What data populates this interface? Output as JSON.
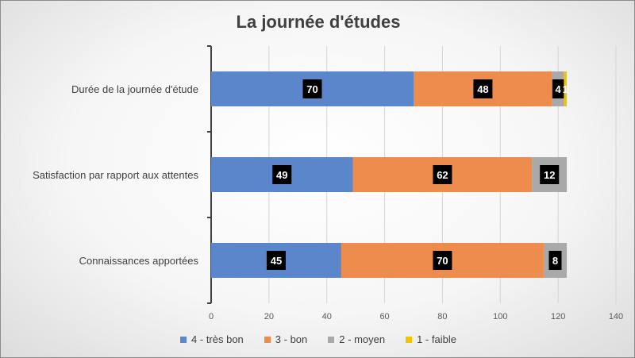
{
  "chart_data": {
    "type": "bar",
    "orientation": "horizontal",
    "stacked": true,
    "title": "La journée d'études",
    "categories": [
      "Durée de la journée d'étude",
      "Satisfaction par rapport aux attentes",
      "Connaissances apportées"
    ],
    "series": [
      {
        "name": "4 - très bon",
        "color": "#5b86cc",
        "values": [
          70,
          49,
          45
        ]
      },
      {
        "name": "3 - bon",
        "color": "#ee8c4d",
        "values": [
          48,
          62,
          70
        ]
      },
      {
        "name": "2 - moyen",
        "color": "#a9a9a9",
        "values": [
          4,
          12,
          8
        ]
      },
      {
        "name": "1 - faible",
        "color": "#f5c400",
        "values": [
          1,
          0,
          0
        ]
      }
    ],
    "xlim": [
      0,
      140
    ],
    "xticks": [
      "0",
      "20",
      "40",
      "60",
      "80",
      "100",
      "120",
      "140"
    ],
    "grid": true,
    "legend": "bottom"
  }
}
